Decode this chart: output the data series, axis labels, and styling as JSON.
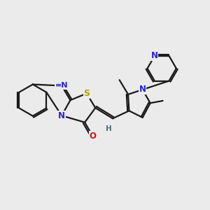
{
  "bg_color": "#ebebeb",
  "bond_color": "#1a1a1a",
  "N_color": "#2525cc",
  "O_color": "#cc1111",
  "S_color": "#b8a000",
  "H_color": "#4a7070",
  "lw": 1.6,
  "fs": 8.5,
  "fs_small": 7.5,
  "xlim": [
    -5.2,
    5.5
  ],
  "ylim": [
    -4.0,
    4.0
  ]
}
